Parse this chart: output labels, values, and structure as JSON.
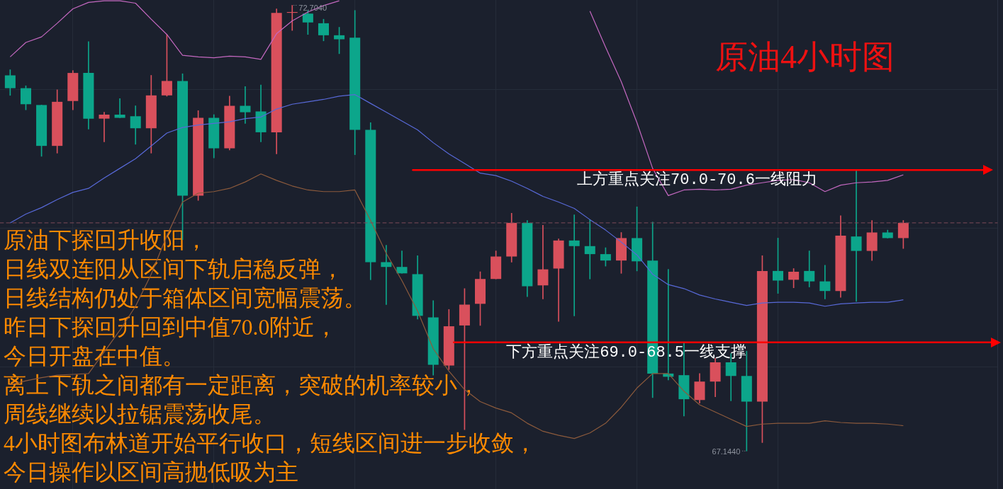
{
  "chart_data": {
    "type": "candlestick",
    "title": "原油4小时图",
    "categories": [
      null,
      null,
      null,
      null,
      null,
      null,
      null,
      null,
      null,
      null,
      null,
      null,
      null,
      null,
      null,
      null,
      null,
      null,
      null,
      null,
      null,
      null,
      null,
      null,
      null,
      null,
      null,
      null,
      null,
      null,
      null,
      null,
      null,
      null,
      null,
      null,
      null,
      null,
      null,
      null,
      null,
      null,
      null,
      null,
      null,
      null,
      null,
      null,
      null,
      null,
      null,
      null,
      null,
      null,
      null,
      null,
      null,
      null
    ],
    "ohlc": [
      [
        71.83,
        71.9,
        71.58,
        71.67
      ],
      [
        71.67,
        71.7,
        71.4,
        71.47
      ],
      [
        71.46,
        71.46,
        70.82,
        70.95
      ],
      [
        70.95,
        71.65,
        70.86,
        71.5
      ],
      [
        71.51,
        71.89,
        71.4,
        71.86
      ],
      [
        71.86,
        72.25,
        71.16,
        71.29
      ],
      [
        71.29,
        71.37,
        71.0,
        71.34
      ],
      [
        71.34,
        71.54,
        71.3,
        71.3
      ],
      [
        71.32,
        71.45,
        70.97,
        71.17
      ],
      [
        71.17,
        71.83,
        70.86,
        71.58
      ],
      [
        71.58,
        72.34,
        71.57,
        71.76
      ],
      [
        71.76,
        71.85,
        69.78,
        70.33
      ],
      [
        70.33,
        71.39,
        70.27,
        71.3
      ],
      [
        71.3,
        71.34,
        70.8,
        70.92
      ],
      [
        70.92,
        71.57,
        70.9,
        71.45
      ],
      [
        71.45,
        71.69,
        71.23,
        71.37
      ],
      [
        71.38,
        71.71,
        71.0,
        71.12
      ],
      [
        71.12,
        72.66,
        70.85,
        72.61
      ],
      [
        72.61,
        72.704,
        72.39,
        72.62
      ],
      [
        72.6,
        72.64,
        72.34,
        72.49
      ],
      [
        72.48,
        72.53,
        72.26,
        72.33
      ],
      [
        72.33,
        72.43,
        72.1,
        72.28
      ],
      [
        72.3,
        72.64,
        70.84,
        71.15
      ],
      [
        71.15,
        71.24,
        69.28,
        69.5
      ],
      [
        69.5,
        69.71,
        68.97,
        69.44
      ],
      [
        69.44,
        69.64,
        69.36,
        69.36
      ],
      [
        69.35,
        69.58,
        68.79,
        68.83
      ],
      [
        68.81,
        69.02,
        68.09,
        68.22
      ],
      [
        68.21,
        68.91,
        68.16,
        68.7
      ],
      [
        68.71,
        69.17,
        67.41,
        68.97
      ],
      [
        68.98,
        69.38,
        68.71,
        69.29
      ],
      [
        69.29,
        69.64,
        69.29,
        69.57
      ],
      [
        69.57,
        70.11,
        69.5,
        69.99
      ],
      [
        69.99,
        70.02,
        69.07,
        69.2
      ],
      [
        69.21,
        69.96,
        69.04,
        69.41
      ],
      [
        69.42,
        69.79,
        68.76,
        69.77
      ],
      [
        69.77,
        70.09,
        68.83,
        69.7
      ],
      [
        69.7,
        70.03,
        69.29,
        69.6
      ],
      [
        69.6,
        69.68,
        69.45,
        69.52
      ],
      [
        69.52,
        69.87,
        69.36,
        69.8
      ],
      [
        69.8,
        70.19,
        69.39,
        69.51
      ],
      [
        69.52,
        70.0,
        67.81,
        68.11
      ],
      [
        68.11,
        69.41,
        68.03,
        68.07
      ],
      [
        68.09,
        68.49,
        67.58,
        67.79
      ],
      [
        67.78,
        68.11,
        67.74,
        68.01
      ],
      [
        68.01,
        68.3,
        67.82,
        68.25
      ],
      [
        68.25,
        68.36,
        67.77,
        68.08
      ],
      [
        68.08,
        68.39,
        67.144,
        67.76
      ],
      [
        67.76,
        69.58,
        67.25,
        69.39
      ],
      [
        69.39,
        69.8,
        69.11,
        69.27
      ],
      [
        69.28,
        69.42,
        69.18,
        69.38
      ],
      [
        69.39,
        69.64,
        69.19,
        69.26
      ],
      [
        69.26,
        69.46,
        69.04,
        69.14
      ],
      [
        69.14,
        70.08,
        69.06,
        69.83
      ],
      [
        69.82,
        70.65,
        69.01,
        69.64
      ],
      [
        69.64,
        70.02,
        69.52,
        69.87
      ],
      [
        69.87,
        69.9,
        69.8,
        69.8
      ],
      [
        69.8,
        70.02,
        69.67,
        69.99
      ]
    ],
    "colors": [
      "#0ca68b",
      "#0ca68b",
      "#0ca68b",
      "#d9505c",
      "#d9505c",
      "#0ca68b",
      "#d9505c",
      "#0ca68b",
      "#0ca68b",
      "#d9505c",
      "#d9505c",
      "#0ca68b",
      "#d9505c",
      "#0ca68b",
      "#d9505c",
      "#0ca68b",
      "#0ca68b",
      "#d9505c",
      "#d9505c",
      "#0ca68b",
      "#0ca68b",
      "#0ca68b",
      "#0ca68b",
      "#0ca68b",
      "#0ca68b",
      "#0ca68b",
      "#0ca68b",
      "#0ca68b",
      "#d9505c",
      "#d9505c",
      "#d9505c",
      "#d9505c",
      "#d9505c",
      "#0ca68b",
      "#d9505c",
      "#d9505c",
      "#0ca68b",
      "#0ca68b",
      "#0ca68b",
      "#d9505c",
      "#0ca68b",
      "#0ca68b",
      "#0ca68b",
      "#0ca68b",
      "#d9505c",
      "#d9505c",
      "#0ca68b",
      "#0ca68b",
      "#d9505c",
      "#0ca68b",
      "#d9505c",
      "#0ca68b",
      "#0ca68b",
      "#d9505c",
      "#0ca68b",
      "#d9505c",
      "#0ca68b",
      "#d9505c"
    ],
    "series": [
      {
        "type": "line",
        "color": "#c468c0",
        "values": [
          72.06,
          72.24,
          72.31,
          72.48,
          72.66,
          72.74,
          72.76,
          72.76,
          72.73,
          72.53,
          72.34,
          72.08,
          72.06,
          72.05,
          72.07,
          72.06,
          72.03,
          72.35,
          72.51,
          72.62,
          72.7,
          72.76,
          null,
          null,
          null,
          null,
          null,
          null,
          null,
          null,
          null,
          null,
          null,
          null,
          null,
          null,
          null,
          72.63,
          72.18,
          71.75,
          71.24,
          70.67,
          70.33,
          70.4,
          70.41,
          70.4,
          70.41,
          70.46,
          70.49,
          70.52,
          70.53,
          70.49,
          70.38,
          70.46,
          70.49,
          70.5,
          70.52,
          70.59
        ]
      },
      {
        "type": "line",
        "color": "#5869d8",
        "values": [
          69.99,
          70.1,
          70.18,
          70.28,
          70.37,
          70.42,
          70.55,
          70.67,
          70.79,
          70.95,
          71.11,
          71.18,
          71.21,
          71.23,
          71.25,
          71.29,
          71.31,
          71.41,
          71.47,
          71.5,
          71.53,
          71.57,
          71.59,
          71.48,
          71.37,
          71.26,
          71.15,
          70.99,
          70.85,
          70.73,
          70.61,
          70.58,
          70.51,
          70.42,
          70.32,
          70.25,
          70.17,
          70.03,
          69.9,
          69.75,
          69.59,
          69.35,
          69.22,
          69.17,
          69.09,
          69.04,
          69.0,
          68.96,
          68.99,
          69.0,
          69.0,
          68.99,
          68.95,
          68.98,
          68.99,
          69.0,
          69.0,
          69.03
        ]
      },
      {
        "type": "line",
        "color": "#8c5a3c",
        "values": [
          67.97,
          68.02,
          68.06,
          68.09,
          68.1,
          68.11,
          68.38,
          68.65,
          68.95,
          69.35,
          69.83,
          70.25,
          70.36,
          70.38,
          70.42,
          70.5,
          70.6,
          70.52,
          70.45,
          70.4,
          70.38,
          70.38,
          70.4,
          70.02,
          69.61,
          69.27,
          68.89,
          68.42,
          68.14,
          67.91,
          67.76,
          67.68,
          67.62,
          67.49,
          67.39,
          67.34,
          67.3,
          67.37,
          67.49,
          67.69,
          67.93,
          68.11,
          68.11,
          67.89,
          67.72,
          67.63,
          67.54,
          67.45,
          67.48,
          67.49,
          67.49,
          67.49,
          67.52,
          67.5,
          67.49,
          67.49,
          67.48,
          67.46
        ]
      }
    ],
    "ylim": [
      66.67,
      72.77
    ],
    "yticks": [
      {
        "value": 68.19,
        "label": null
      },
      {
        "value": 69.92,
        "label": null
      },
      {
        "value": 71.65,
        "label": null
      }
    ],
    "grid": true,
    "tick_labels": false,
    "ref_lines": [
      {
        "axis": "y",
        "value": 69.99,
        "color": "#7d4a5a",
        "line_style": "dashed"
      },
      {
        "axis": "y",
        "value": 70.65,
        "label": "上方重点关注70.0-70.6一线阻力",
        "color": "#ff0000"
      },
      {
        "axis": "y",
        "value": 68.5,
        "label": "下方重点关注69.0-68.5一线支撑",
        "color": "#ff0000"
      }
    ],
    "annotations": [
      "72.7040",
      "67.1440",
      "原油下探回升收阳，",
      "日线双连阳从区间下轨启稳反弹，",
      "日线结构仍处于箱体区间宽幅震荡。",
      "昨日下探回升回到中值70.0附近，",
      "今日开盘在中值。",
      "离上下轨之间都有一定距离，突破的机率较小，",
      "周线继续以拉锯震荡收尾。",
      "4小时图布林道开始平行收口，短线区间进一步收敛，",
      "今日操作以区间高抛低吸为主"
    ]
  }
}
